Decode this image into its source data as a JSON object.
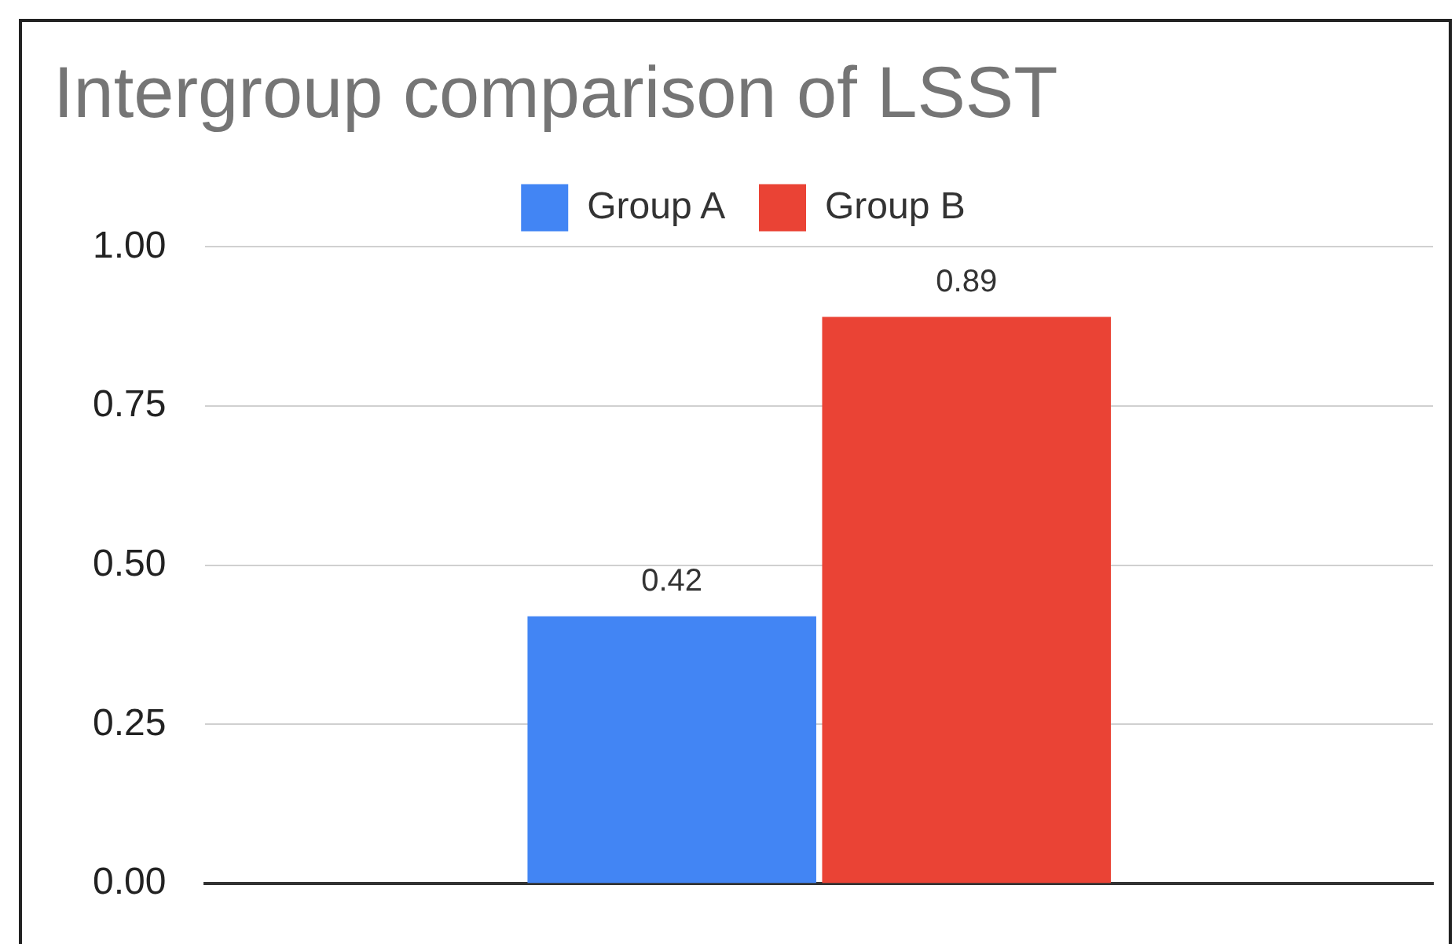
{
  "chart_data": {
    "type": "bar",
    "title": "Intergroup comparison of LSST",
    "categories": [
      null
    ],
    "series": [
      {
        "name": "Group A",
        "color": "#4285f4",
        "values": [
          0.42
        ]
      },
      {
        "name": "Group B",
        "color": "#ea4335",
        "values": [
          0.89
        ]
      }
    ],
    "ylim": [
      0,
      1
    ],
    "yticks": [
      {
        "value": 0,
        "label": "0.00"
      },
      {
        "value": 0.25,
        "label": "0.25"
      },
      {
        "value": 0.5,
        "label": "0.50"
      },
      {
        "value": 0.75,
        "label": "0.75"
      },
      {
        "value": 1,
        "label": "1.00"
      }
    ],
    "grid": "y",
    "legend": "top",
    "data_labels": true
  }
}
